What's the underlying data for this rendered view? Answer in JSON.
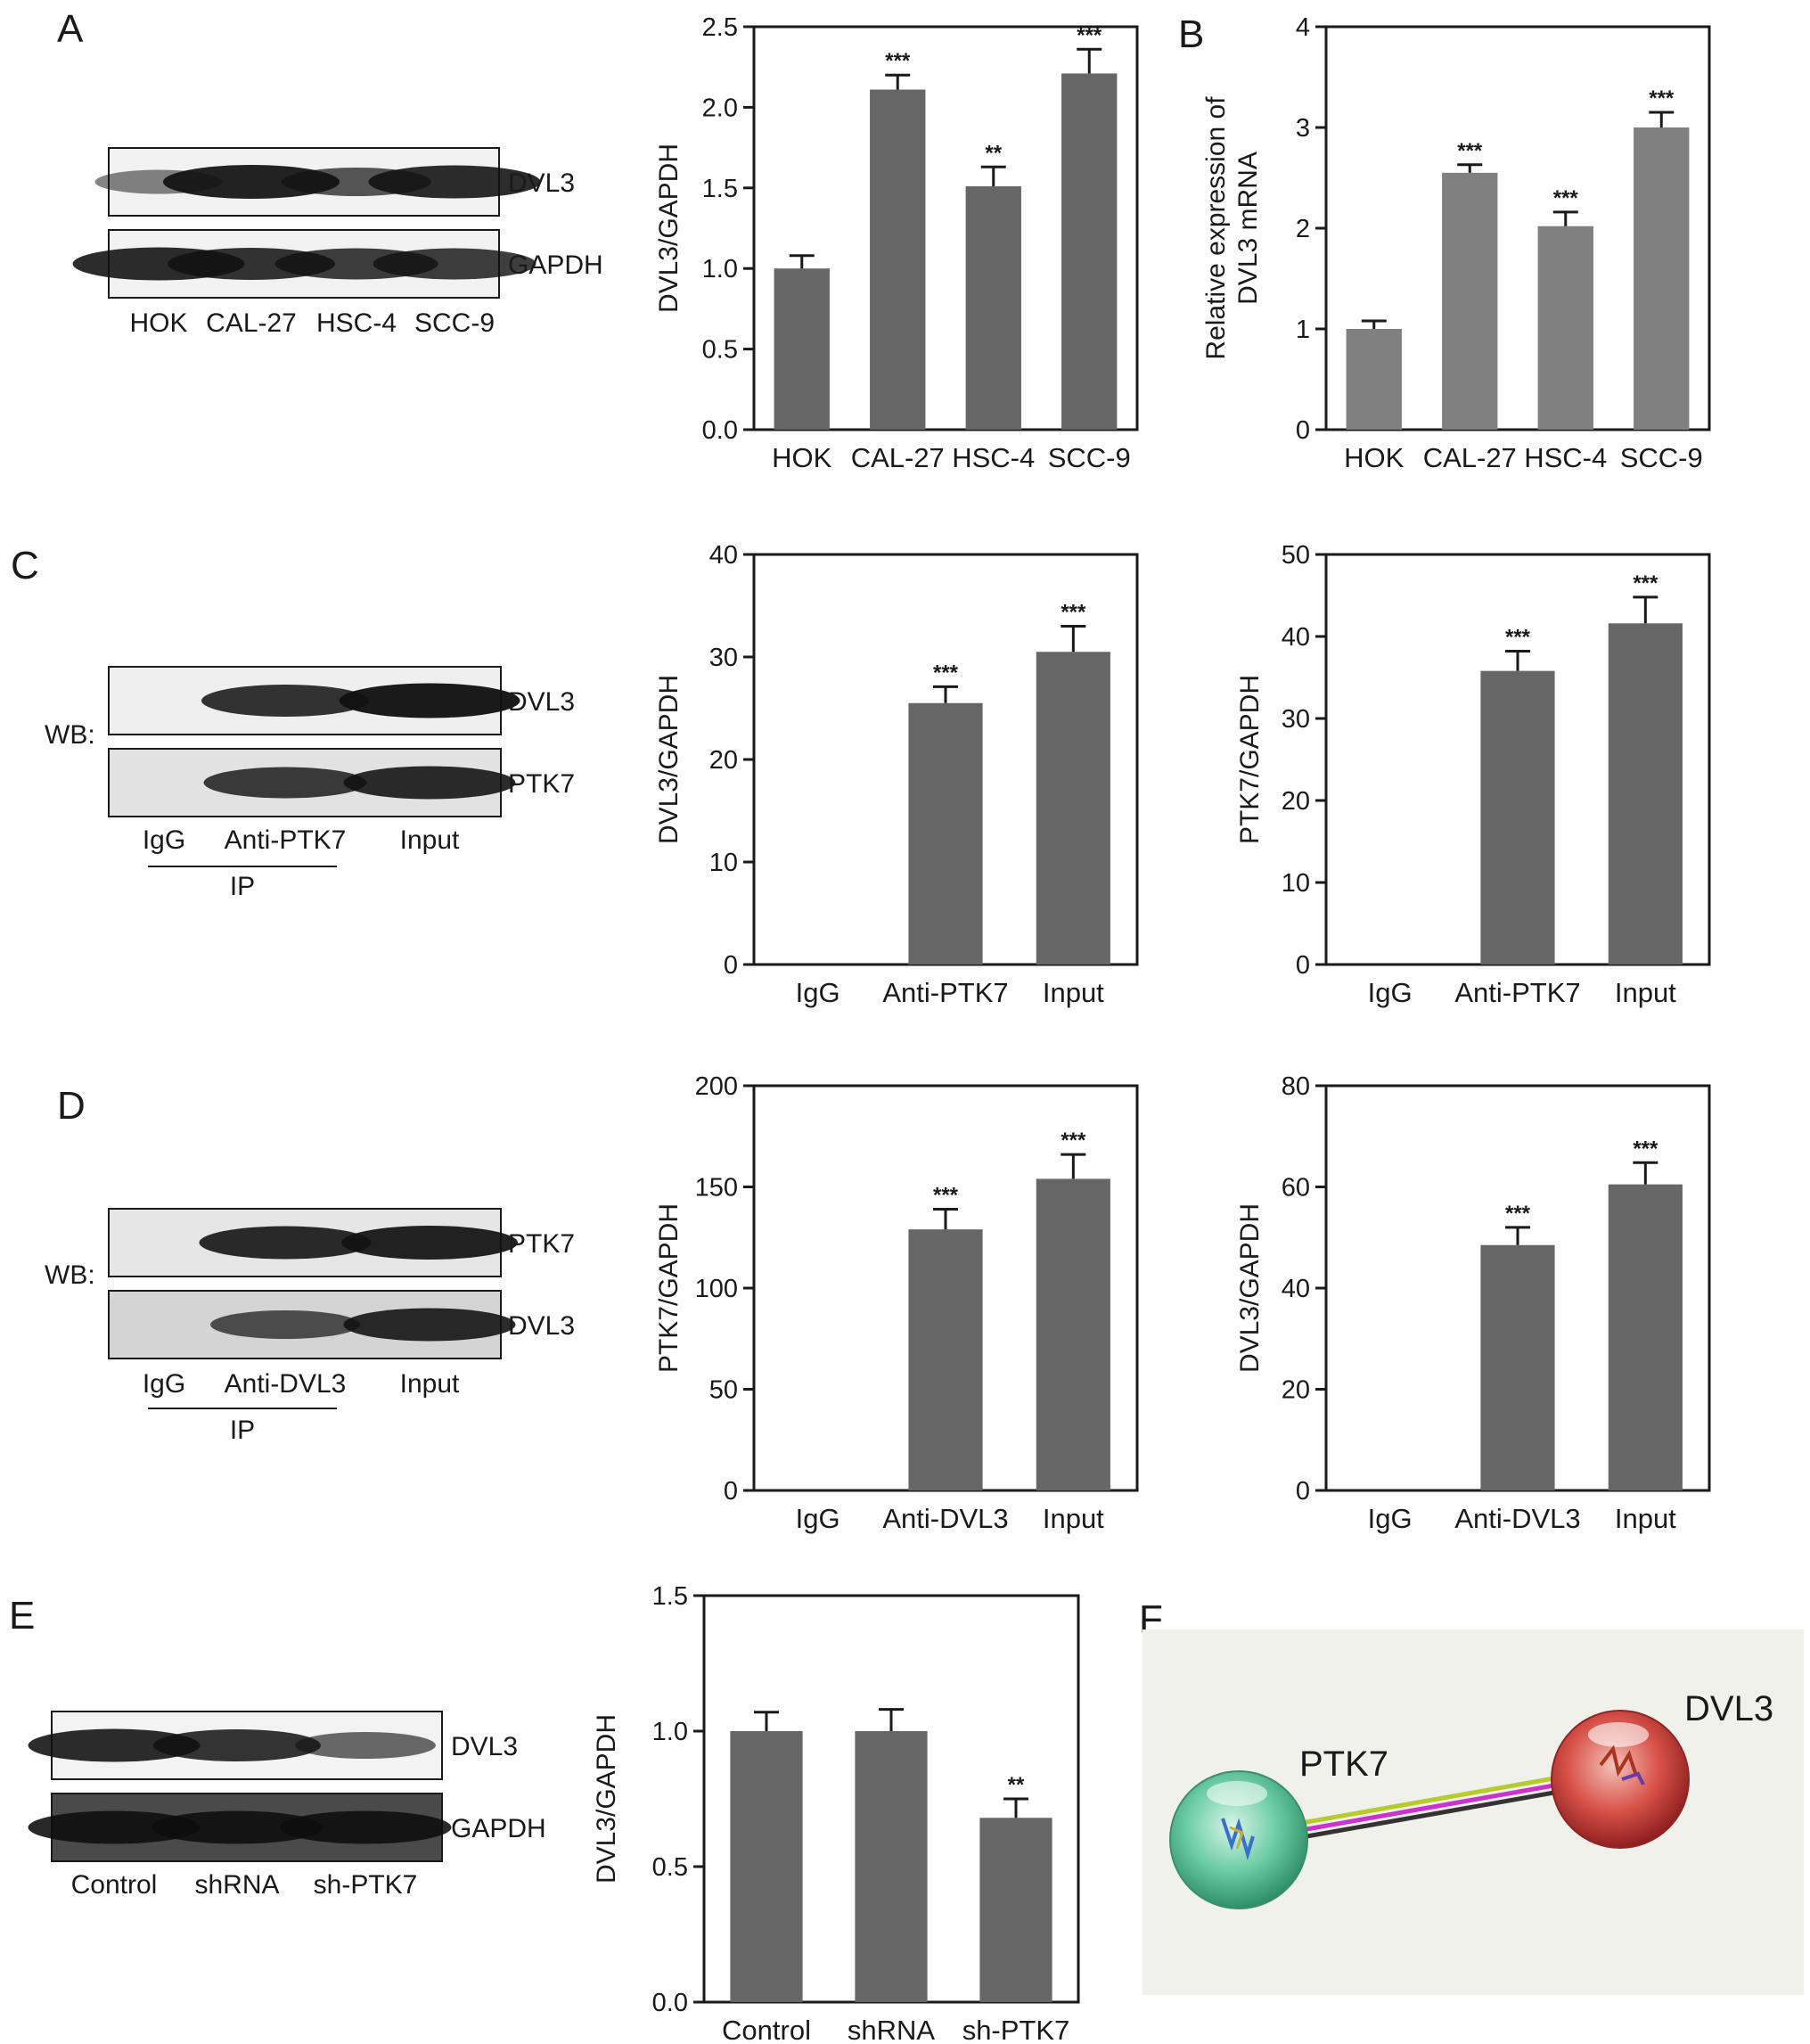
{
  "panels": {
    "A": "A",
    "B": "B",
    "C": "C",
    "D": "D",
    "E": "E",
    "F": "F"
  },
  "blots": {
    "A": {
      "lanes": [
        "HOK",
        "CAL-27",
        "HSC-4",
        "SCC-9"
      ],
      "rows": [
        "DVL3",
        "GAPDH"
      ],
      "intensity": [
        [
          0.35,
          0.9,
          0.6,
          0.85
        ],
        [
          0.85,
          0.8,
          0.75,
          0.75
        ]
      ]
    },
    "C": {
      "lanes": [
        "IgG",
        "Anti-PTK7",
        "Input"
      ],
      "rows": [
        "DVL3",
        "PTK7"
      ],
      "wb_label": "WB:",
      "ip_label": "IP",
      "intensity": [
        [
          0.0,
          0.8,
          0.95
        ],
        [
          0.0,
          0.75,
          0.85
        ]
      ]
    },
    "D": {
      "lanes": [
        "IgG",
        "Anti-DVL3",
        "Input"
      ],
      "rows": [
        "PTK7",
        "DVL3"
      ],
      "wb_label": "WB:",
      "ip_label": "IP",
      "intensity": [
        [
          0.0,
          0.85,
          0.9
        ],
        [
          0.0,
          0.6,
          0.85
        ]
      ]
    },
    "E": {
      "lanes": [
        "Control",
        "shRNA",
        "sh-PTK7"
      ],
      "rows": [
        "DVL3",
        "GAPDH"
      ],
      "intensity": [
        [
          0.85,
          0.8,
          0.5
        ],
        [
          0.85,
          0.85,
          0.85
        ]
      ]
    }
  },
  "network": {
    "nodes": [
      "PTK7",
      "DVL3"
    ],
    "colors": [
      "#4fbf8f",
      "#cc3333"
    ]
  },
  "chart_data": [
    {
      "id": "A-bar",
      "type": "bar",
      "categories": [
        "HOK",
        "CAL-27",
        "HSC-4",
        "SCC-9"
      ],
      "values": [
        1.0,
        2.11,
        1.51,
        2.21
      ],
      "errors": [
        0.08,
        0.09,
        0.12,
        0.15
      ],
      "significance": [
        "",
        "***",
        "**",
        "***"
      ],
      "ylabel": "DVL3/GAPDH",
      "ylim": [
        0,
        2.5
      ],
      "yticks": [
        "0.0",
        "0.5",
        "1.0",
        "1.5",
        "2.0",
        "2.5"
      ],
      "bar_color": "#666666"
    },
    {
      "id": "B-bar",
      "type": "bar",
      "categories": [
        "HOK",
        "CAL-27",
        "HSC-4",
        "SCC-9"
      ],
      "values": [
        1.0,
        2.55,
        2.02,
        3.0
      ],
      "errors": [
        0.08,
        0.08,
        0.14,
        0.15
      ],
      "significance": [
        "",
        "***",
        "***",
        "***"
      ],
      "ylabel": "Relative expression of DVL3 mRNA",
      "ylim": [
        0,
        4
      ],
      "yticks": [
        "0",
        "1",
        "2",
        "3",
        "4"
      ],
      "bar_color": "#808080"
    },
    {
      "id": "C-bar1",
      "type": "bar",
      "categories": [
        "IgG",
        "Anti-PTK7",
        "Input"
      ],
      "values": [
        0,
        25.5,
        30.5
      ],
      "errors": [
        0,
        1.6,
        2.5
      ],
      "significance": [
        "",
        "***",
        "***"
      ],
      "ylabel": "DVL3/GAPDH",
      "ylim": [
        0,
        40
      ],
      "yticks": [
        "0",
        "10",
        "20",
        "30",
        "40"
      ],
      "bar_color": "#666666"
    },
    {
      "id": "C-bar2",
      "type": "bar",
      "categories": [
        "IgG",
        "Anti-PTK7",
        "Input"
      ],
      "values": [
        0,
        35.8,
        41.6
      ],
      "errors": [
        0,
        2.4,
        3.2
      ],
      "significance": [
        "",
        "***",
        "***"
      ],
      "ylabel": "PTK7/GAPDH",
      "ylim": [
        0,
        50
      ],
      "yticks": [
        "0",
        "10",
        "20",
        "30",
        "40",
        "50"
      ],
      "bar_color": "#666666"
    },
    {
      "id": "D-bar1",
      "type": "bar",
      "categories": [
        "IgG",
        "Anti-DVL3",
        "Input"
      ],
      "values": [
        0,
        129,
        154
      ],
      "errors": [
        0,
        10,
        12
      ],
      "significance": [
        "",
        "***",
        "***"
      ],
      "ylabel": "PTK7/GAPDH",
      "ylim": [
        0,
        200
      ],
      "yticks": [
        "0",
        "50",
        "100",
        "150",
        "200"
      ],
      "bar_color": "#666666"
    },
    {
      "id": "D-bar2",
      "type": "bar",
      "categories": [
        "IgG",
        "Anti-DVL3",
        "Input"
      ],
      "values": [
        0,
        48.5,
        60.5
      ],
      "errors": [
        0,
        3.5,
        4.3
      ],
      "significance": [
        "",
        "***",
        "***"
      ],
      "ylabel": "DVL3/GAPDH",
      "ylim": [
        0,
        80
      ],
      "yticks": [
        "0",
        "20",
        "40",
        "60",
        "80"
      ],
      "bar_color": "#666666"
    },
    {
      "id": "E-bar",
      "type": "bar",
      "categories": [
        "Control",
        "shRNA",
        "sh-PTK7"
      ],
      "values": [
        1.0,
        1.0,
        0.68
      ],
      "errors": [
        0.07,
        0.08,
        0.07
      ],
      "significance": [
        "",
        "",
        "**"
      ],
      "ylabel": "DVL3/GAPDH",
      "ylim": [
        0,
        1.5
      ],
      "yticks": [
        "0.0",
        "0.5",
        "1.0",
        "1.5"
      ],
      "bar_color": "#666666"
    }
  ]
}
